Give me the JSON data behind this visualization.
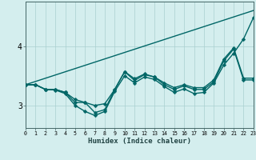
{
  "xlabel": "Humidex (Indice chaleur)",
  "xlim": [
    0,
    23
  ],
  "ylim": [
    2.62,
    4.75
  ],
  "background_color": "#d4eeee",
  "grid_color": "#aad0d0",
  "line_color": "#006666",
  "line_width": 1.0,
  "marker_size": 2.5,
  "x_ticks": [
    0,
    1,
    2,
    3,
    4,
    5,
    6,
    7,
    8,
    9,
    10,
    11,
    12,
    13,
    14,
    15,
    16,
    17,
    18,
    19,
    20,
    21,
    22,
    23
  ],
  "y_ticks": [
    3,
    4
  ],
  "straight_line": [
    3.35,
    4.6
  ],
  "series": [
    [
      3.35,
      3.35,
      3.27,
      3.26,
      3.2,
      3.0,
      2.9,
      2.83,
      2.9,
      3.24,
      3.5,
      3.38,
      3.48,
      3.44,
      3.32,
      3.22,
      3.28,
      3.2,
      3.22,
      3.38,
      3.68,
      3.88,
      4.12,
      4.48
    ],
    [
      3.35,
      3.35,
      3.27,
      3.27,
      3.22,
      3.05,
      3.05,
      2.88,
      2.93,
      3.27,
      3.57,
      3.42,
      3.52,
      3.48,
      3.35,
      3.27,
      3.33,
      3.27,
      3.27,
      3.4,
      3.75,
      3.95,
      3.43,
      3.43
    ],
    [
      3.35,
      3.35,
      3.27,
      3.27,
      3.22,
      3.1,
      3.05,
      3.0,
      3.03,
      3.27,
      3.57,
      3.45,
      3.53,
      3.48,
      3.38,
      3.3,
      3.35,
      3.3,
      3.3,
      3.43,
      3.78,
      3.97,
      3.46,
      3.46
    ]
  ]
}
